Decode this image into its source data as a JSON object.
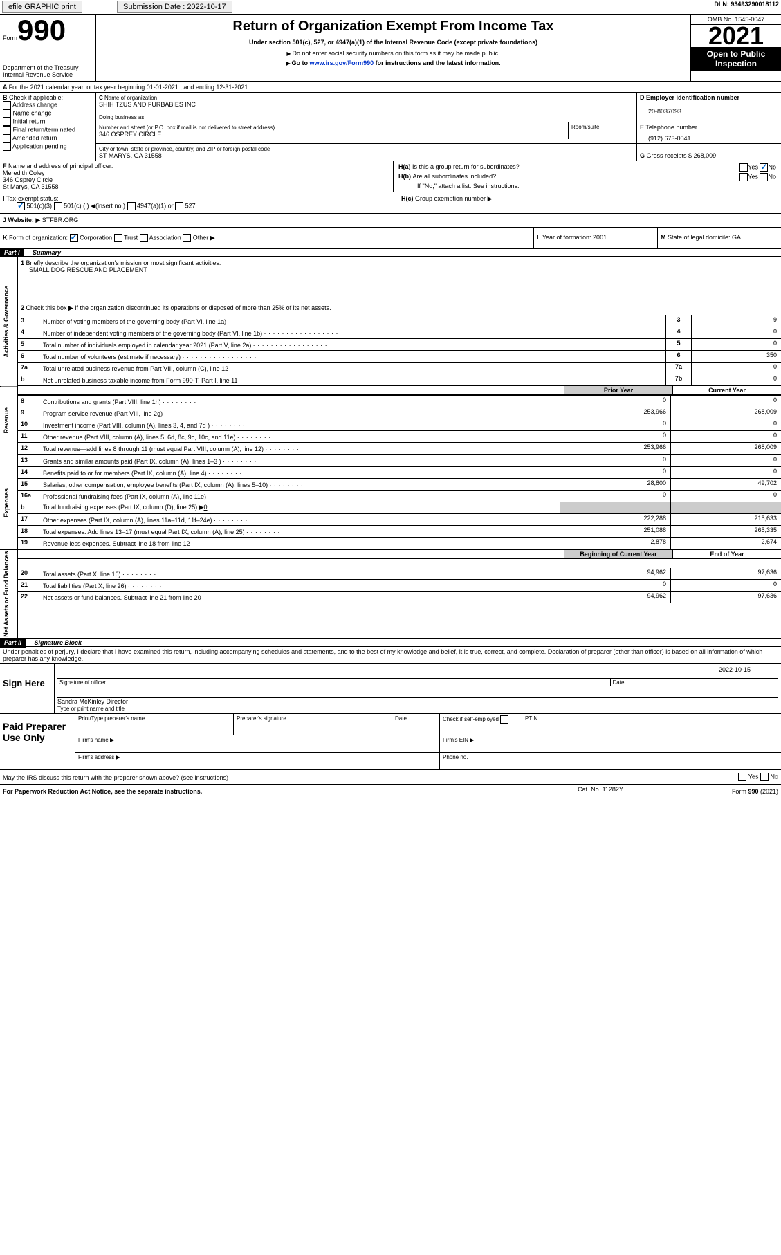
{
  "header": {
    "efile": "efile GRAPHIC print",
    "submission_label": "Submission Date : 2022-10-17",
    "dln_label": "DLN: 93493290018112"
  },
  "formhead": {
    "form_word": "Form",
    "form_num": "990",
    "dept": "Department of the Treasury",
    "irs": "Internal Revenue Service",
    "title": "Return of Organization Exempt From Income Tax",
    "subtitle": "Under section 501(c), 527, or 4947(a)(1) of the Internal Revenue Code (except private foundations)",
    "note1": "Do not enter social security numbers on this form as it may be made public.",
    "note2_pre": "Go to ",
    "note2_link": "www.irs.gov/Form990",
    "note2_post": " for instructions and the latest information.",
    "omb": "OMB No. 1545-0047",
    "year": "2021",
    "open": "Open to Public Inspection"
  },
  "sectionA": {
    "line": "For the 2021 calendar year, or tax year beginning 01-01-2021    , and ending 12-31-2021"
  },
  "sectionB": {
    "label": "Check if applicable:",
    "opts": [
      "Address change",
      "Name change",
      "Initial return",
      "Final return/terminated",
      "Amended return",
      "Application pending"
    ]
  },
  "sectionC": {
    "name_label": "Name of organization",
    "name": "SHIH TZUS AND FURBABIES INC",
    "dba_label": "Doing business as",
    "addr_label": "Number and street (or P.O. box if mail is not delivered to street address)",
    "room_label": "Room/suite",
    "addr": "346 OSPREY CIRCLE",
    "city_label": "City or town, state or province, country, and ZIP or foreign postal code",
    "city": "ST MARYS, GA  31558"
  },
  "sectionD": {
    "label": "Employer identification number",
    "val": "20-8037093"
  },
  "sectionE": {
    "label": "E Telephone number",
    "val": "(912) 673-0041"
  },
  "sectionG": {
    "label": "Gross receipts $",
    "val": "268,009"
  },
  "sectionF": {
    "label": "Name and address of principal officer:",
    "name": "Meredith Coley",
    "addr1": "346 Osprey Circle",
    "addr2": "St Marys, GA  31558"
  },
  "sectionH": {
    "a": "Is this a group return for subordinates?",
    "b": "Are all subordinates included?",
    "note": "If \"No,\" attach a list. See instructions.",
    "c": "Group exemption number",
    "yes": "Yes",
    "no": "No"
  },
  "sectionI": {
    "label": "Tax-exempt status:",
    "c3": "501(c)(3)",
    "c_other": "501(c) (  ) ",
    "insert": "(insert no.)",
    "a1": "4947(a)(1) or",
    "527": "527"
  },
  "sectionJ": {
    "label": "Website:",
    "val": "STFBR.ORG"
  },
  "sectionK": {
    "label": "Form of organization:",
    "corp": "Corporation",
    "trust": "Trust",
    "assoc": "Association",
    "other": "Other"
  },
  "sectionL": {
    "label": "Year of formation: 2001"
  },
  "sectionM": {
    "label": "State of legal domicile: GA"
  },
  "part1": {
    "title": "Part I",
    "subtitle": "Summary",
    "q1": "Briefly describe the organization's mission or most significant activities:",
    "q1a": "SMALL DOG RESCUE AND PLACEMENT",
    "q2": "Check this box ▶        if the organization discontinued its operations or disposed of more than 25% of its net assets.",
    "rows": [
      {
        "n": "3",
        "t": "Number of voting members of the governing body (Part VI, line 1a)",
        "box": "3",
        "val": "9"
      },
      {
        "n": "4",
        "t": "Number of independent voting members of the governing body (Part VI, line 1b)",
        "box": "4",
        "val": "0"
      },
      {
        "n": "5",
        "t": "Total number of individuals employed in calendar year 2021 (Part V, line 2a)",
        "box": "5",
        "val": "0"
      },
      {
        "n": "6",
        "t": "Total number of volunteers (estimate if necessary)",
        "box": "6",
        "val": "350"
      },
      {
        "n": "7a",
        "t": "Total unrelated business revenue from Part VIII, column (C), line 12",
        "box": "7a",
        "val": "0"
      },
      {
        "n": "b",
        "t": "Net unrelated business taxable income from Form 990-T, Part I, line 11",
        "box": "7b",
        "val": "0"
      }
    ],
    "col_prior": "Prior Year",
    "col_current": "Current Year",
    "fin": [
      {
        "n": "8",
        "t": "Contributions and grants (Part VIII, line 1h)",
        "p": "0",
        "c": "0"
      },
      {
        "n": "9",
        "t": "Program service revenue (Part VIII, line 2g)",
        "p": "253,966",
        "c": "268,009"
      },
      {
        "n": "10",
        "t": "Investment income (Part VIII, column (A), lines 3, 4, and 7d )",
        "p": "0",
        "c": "0"
      },
      {
        "n": "11",
        "t": "Other revenue (Part VIII, column (A), lines 5, 6d, 8c, 9c, 10c, and 11e)",
        "p": "0",
        "c": "0"
      },
      {
        "n": "12",
        "t": "Total revenue—add lines 8 through 11 (must equal Part VIII, column (A), line 12)",
        "p": "253,966",
        "c": "268,009"
      },
      {
        "n": "13",
        "t": "Grants and similar amounts paid (Part IX, column (A), lines 1–3 )",
        "p": "0",
        "c": "0"
      },
      {
        "n": "14",
        "t": "Benefits paid to or for members (Part IX, column (A), line 4)",
        "p": "0",
        "c": "0"
      },
      {
        "n": "15",
        "t": "Salaries, other compensation, employee benefits (Part IX, column (A), lines 5–10)",
        "p": "28,800",
        "c": "49,702"
      },
      {
        "n": "16a",
        "t": "Professional fundraising fees (Part IX, column (A), line 11e)",
        "p": "0",
        "c": "0"
      }
    ],
    "line16b_pre": "Total fundraising expenses (Part IX, column (D), line 25) ▶",
    "line16b_val": "0",
    "fin2": [
      {
        "n": "17",
        "t": "Other expenses (Part IX, column (A), lines 11a–11d, 11f–24e)",
        "p": "222,288",
        "c": "215,633"
      },
      {
        "n": "18",
        "t": "Total expenses. Add lines 13–17 (must equal Part IX, column (A), line 25)",
        "p": "251,088",
        "c": "265,335"
      },
      {
        "n": "19",
        "t": "Revenue less expenses. Subtract line 18 from line 12",
        "p": "2,878",
        "c": "2,674"
      }
    ],
    "col_boy": "Beginning of Current Year",
    "col_eoy": "End of Year",
    "bal": [
      {
        "n": "20",
        "t": "Total assets (Part X, line 16)",
        "p": "94,962",
        "c": "97,636"
      },
      {
        "n": "21",
        "t": "Total liabilities (Part X, line 26)",
        "p": "0",
        "c": "0"
      },
      {
        "n": "22",
        "t": "Net assets or fund balances. Subtract line 21 from line 20",
        "p": "94,962",
        "c": "97,636"
      }
    ]
  },
  "part2": {
    "title": "Part II",
    "subtitle": "Signature Block",
    "decl": "Under penalties of perjury, I declare that I have examined this return, including accompanying schedules and statements, and to the best of my knowledge and belief, it is true, correct, and complete. Declaration of preparer (other than officer) is based on all information of which preparer has any knowledge.",
    "sign_here": "Sign Here",
    "sig_officer": "Signature of officer",
    "date": "Date",
    "date_val": "2022-10-15",
    "typed": "Sandra McKinley  Director",
    "typed_label": "Type or print name and title",
    "paid": "Paid Preparer Use Only",
    "prep_name": "Print/Type preparer's name",
    "prep_sig": "Preparer's signature",
    "prep_date": "Date",
    "check_self": "Check         if self-employed",
    "ptin": "PTIN",
    "firm_name": "Firm's name    ▶",
    "firm_ein": "Firm's EIN ▶",
    "firm_addr": "Firm's address ▶",
    "phone": "Phone no.",
    "may_irs": "May the IRS discuss this return with the preparer shown above? (see instructions)"
  },
  "footer": {
    "pra": "For Paperwork Reduction Act Notice, see the separate instructions.",
    "cat": "Cat. No. 11282Y",
    "form": "Form 990 (2021)"
  }
}
